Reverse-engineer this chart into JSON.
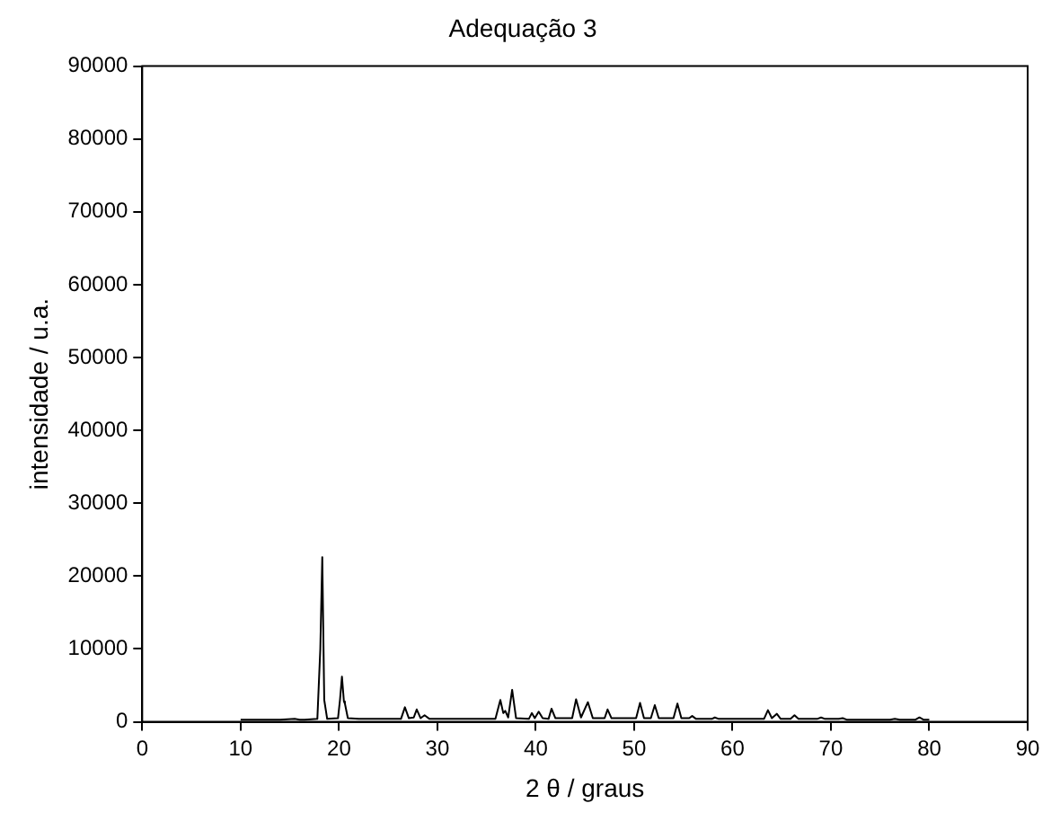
{
  "chart_data": {
    "type": "line",
    "title": "Adequação 3",
    "xlabel": "2 θ / graus",
    "ylabel": "intensidade / u.a.",
    "xlim": [
      0,
      90
    ],
    "xticks": [
      0,
      10,
      20,
      30,
      40,
      50,
      60,
      70,
      80,
      90
    ],
    "ylim": [
      0,
      90000
    ],
    "yticks": [
      0,
      10000,
      20000,
      30000,
      40000,
      50000,
      60000,
      70000,
      80000,
      90000
    ],
    "grid": false,
    "legend": false,
    "marker": "none",
    "line_style": "solid",
    "series": [
      {
        "color": "#000000",
        "x": [
          10,
          14,
          15.5,
          16,
          16.5,
          17.8,
          18.1,
          18.3,
          18.5,
          18.8,
          19.9,
          20.1,
          20.3,
          20.5,
          20.6,
          20.9,
          22,
          26.3,
          26.7,
          27.1,
          27.6,
          27.9,
          28.3,
          28.7,
          29.2,
          32,
          35.9,
          36.4,
          36.7,
          36.9,
          37.2,
          37.6,
          38,
          39.3,
          39.6,
          39.9,
          40.3,
          40.7,
          41.3,
          41.6,
          42,
          43.7,
          44.1,
          44.6,
          45.3,
          45.8,
          47,
          47.3,
          47.7,
          50.2,
          50.6,
          51,
          51.7,
          52.1,
          52.5,
          54,
          54.4,
          54.8,
          55.6,
          55.9,
          56.3,
          57.9,
          58.2,
          58.6,
          63.2,
          63.6,
          64,
          64.5,
          64.9,
          65.9,
          66.3,
          66.7,
          68.6,
          69,
          69.4,
          70.8,
          71.2,
          71.6,
          76,
          76.5,
          77,
          78.6,
          79,
          79.4,
          80
        ],
        "values": [
          300,
          300,
          400,
          300,
          300,
          400,
          10000,
          22600,
          3000,
          400,
          500,
          3000,
          6200,
          2800,
          2500,
          500,
          400,
          400,
          2000,
          500,
          600,
          1700,
          500,
          900,
          400,
          400,
          400,
          3000,
          1200,
          1500,
          600,
          4400,
          500,
          400,
          1200,
          500,
          1400,
          500,
          400,
          1800,
          500,
          500,
          3100,
          600,
          2700,
          500,
          500,
          1700,
          500,
          500,
          2600,
          500,
          500,
          2300,
          500,
          500,
          2500,
          500,
          500,
          800,
          400,
          400,
          600,
          400,
          400,
          1600,
          500,
          1100,
          400,
          400,
          900,
          400,
          400,
          600,
          400,
          400,
          500,
          300,
          300,
          400,
          300,
          300,
          600,
          300,
          300
        ]
      }
    ]
  }
}
